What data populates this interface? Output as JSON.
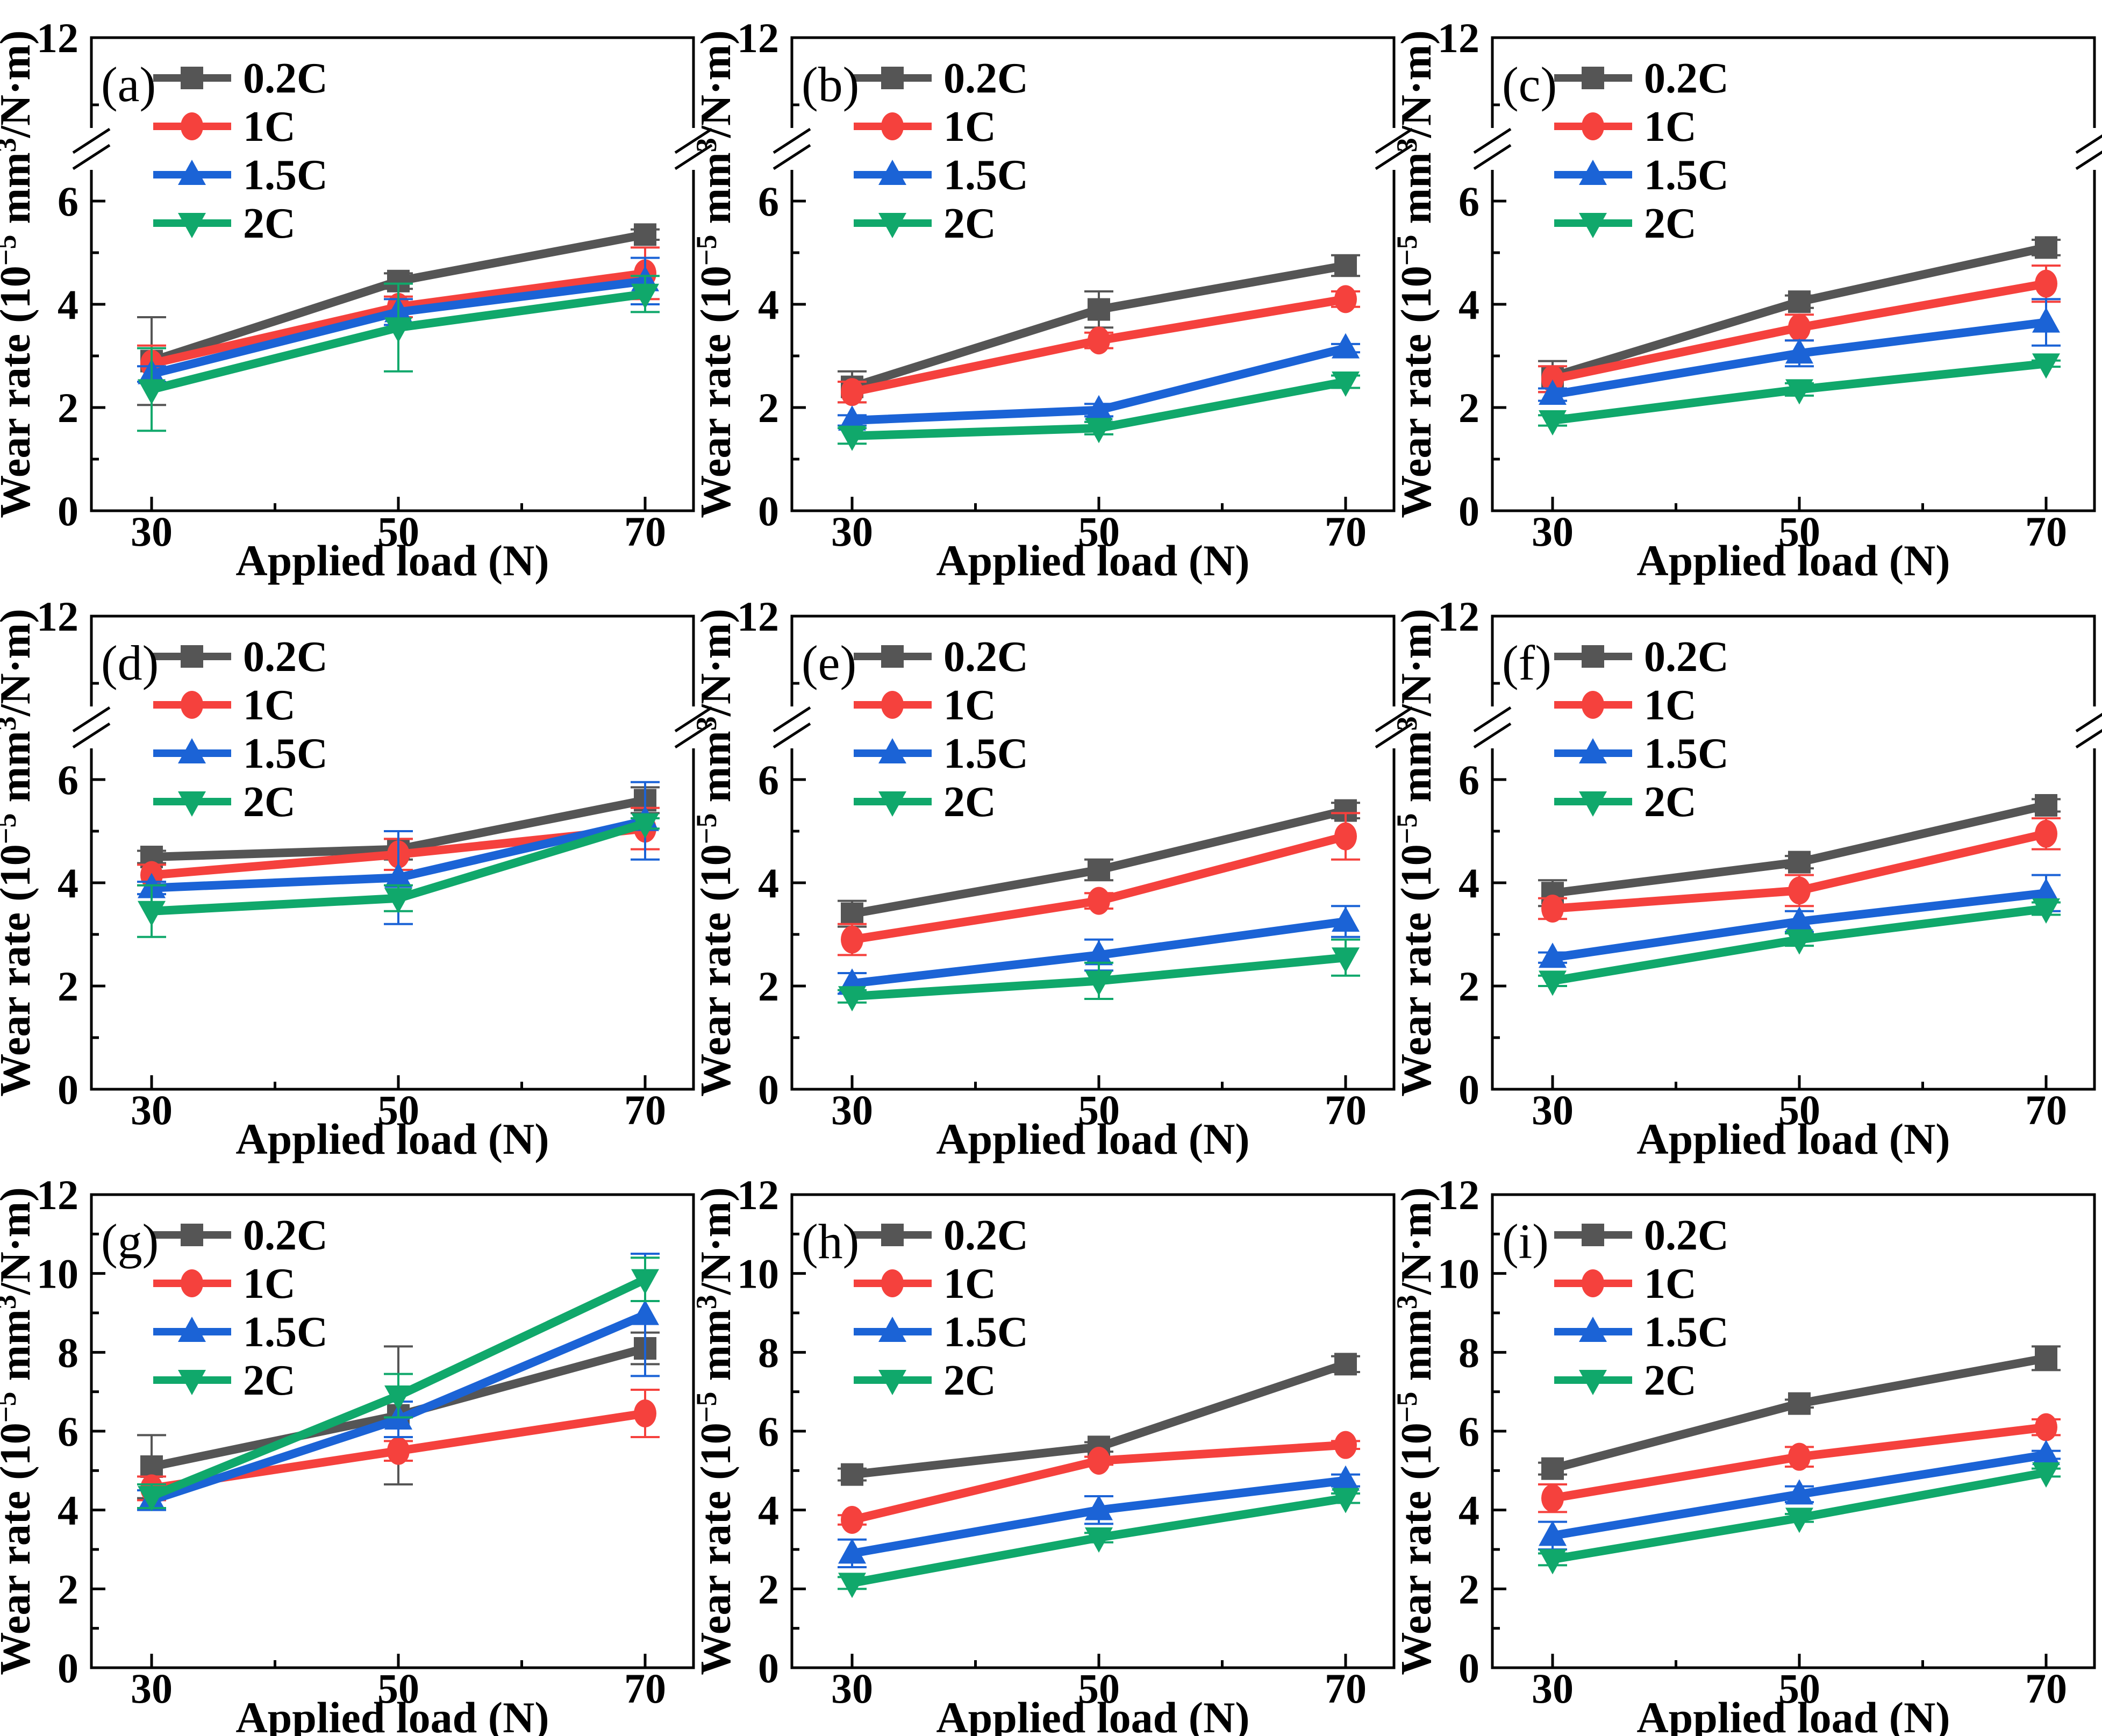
{
  "figure": {
    "x_axis_title": "Applied load (N)",
    "y_axis_title_parts": [
      {
        "t": "Wear rate (10"
      },
      {
        "t": "−5",
        "sup": true
      },
      {
        "t": " mm"
      },
      {
        "t": "3",
        "sup": true
      },
      {
        "t": "/N·m)"
      }
    ],
    "axes": {
      "x_ticks": [
        {
          "v": 30,
          "label": "30"
        },
        {
          "v": 50,
          "label": "50"
        },
        {
          "v": 70,
          "label": "70"
        }
      ],
      "x_minor": [
        40,
        60
      ],
      "y_broken": {
        "major": [
          {
            "v": 0,
            "label": "0"
          },
          {
            "v": 2,
            "label": "2"
          },
          {
            "v": 4,
            "label": "4"
          },
          {
            "v": 6,
            "label": "6"
          }
        ],
        "minor_values": [
          1,
          3,
          5
        ],
        "top_label": "12"
      },
      "y_linear": {
        "major": [
          {
            "v": 0,
            "label": "0"
          },
          {
            "v": 2,
            "label": "2"
          },
          {
            "v": 4,
            "label": "4"
          },
          {
            "v": 6,
            "label": "6"
          },
          {
            "v": 8,
            "label": "8"
          },
          {
            "v": 10,
            "label": "10"
          },
          {
            "v": 12,
            "label": "12"
          }
        ],
        "minor_values": [
          1,
          3,
          5,
          7,
          9,
          11
        ]
      }
    },
    "legend": {
      "items": [
        {
          "label": "0.2C",
          "color": "#555555",
          "marker": "square"
        },
        {
          "label": "1C",
          "color": "#f5413d",
          "marker": "circle"
        },
        {
          "label": "1.5C",
          "color": "#1b63d6",
          "marker": "triangle-up"
        },
        {
          "label": "2C",
          "color": "#10a86b",
          "marker": "triangle-down"
        }
      ]
    },
    "colors": {
      "series_02c": "#555555",
      "series_1c": "#f5413d",
      "series_15c": "#1b63d6",
      "series_2c": "#10a86b",
      "axis": "#000000",
      "background": "#ffffff"
    }
  },
  "chart_data": [
    {
      "panel": "a",
      "type": "line",
      "broken_y_axis": true,
      "title": "",
      "xlabel": "Applied load (N)",
      "ylabel": "Wear rate (10-5 mm3/N·m)",
      "x": [
        30,
        50,
        70
      ],
      "ylim": [
        0,
        12
      ],
      "series": [
        {
          "name": "0.2C",
          "values": [
            2.9,
            4.45,
            5.35
          ],
          "errors": [
            0.85,
            0.15,
            0.1
          ]
        },
        {
          "name": "1C",
          "values": [
            2.85,
            3.95,
            4.6
          ],
          "errors": [
            0.35,
            0.2,
            0.5
          ]
        },
        {
          "name": "1.5C",
          "values": [
            2.65,
            3.85,
            4.45
          ],
          "errors": [
            0.15,
            0.25,
            0.45
          ]
        },
        {
          "name": "2C",
          "values": [
            2.35,
            3.55,
            4.2
          ],
          "errors": [
            0.8,
            0.85,
            0.35
          ]
        }
      ]
    },
    {
      "panel": "b",
      "type": "line",
      "broken_y_axis": true,
      "title": "",
      "xlabel": "Applied load (N)",
      "ylabel": "Wear rate (10-5 mm3/N·m)",
      "x": [
        30,
        50,
        70
      ],
      "ylim": [
        0,
        12
      ],
      "series": [
        {
          "name": "0.2C",
          "values": [
            2.4,
            3.9,
            4.75
          ],
          "errors": [
            0.3,
            0.35,
            0.2
          ]
        },
        {
          "name": "1C",
          "values": [
            2.3,
            3.3,
            4.1
          ],
          "errors": [
            0.2,
            0.15,
            0.15
          ]
        },
        {
          "name": "1.5C",
          "values": [
            1.75,
            1.95,
            3.15
          ],
          "errors": [
            0.1,
            0.12,
            0.08
          ]
        },
        {
          "name": "2C",
          "values": [
            1.45,
            1.6,
            2.5
          ],
          "errors": [
            0.15,
            0.12,
            0.12
          ]
        }
      ]
    },
    {
      "panel": "c",
      "type": "line",
      "broken_y_axis": true,
      "title": "",
      "xlabel": "Applied load (N)",
      "ylabel": "Wear rate (10-5 mm3/N·m)",
      "x": [
        30,
        50,
        70
      ],
      "ylim": [
        0,
        12
      ],
      "series": [
        {
          "name": "0.2C",
          "values": [
            2.6,
            4.05,
            5.1
          ],
          "errors": [
            0.3,
            0.12,
            0.15
          ]
        },
        {
          "name": "1C",
          "values": [
            2.55,
            3.55,
            4.4
          ],
          "errors": [
            0.25,
            0.25,
            0.35
          ]
        },
        {
          "name": "1.5C",
          "values": [
            2.25,
            3.05,
            3.65
          ],
          "errors": [
            0.12,
            0.25,
            0.45
          ]
        },
        {
          "name": "2C",
          "values": [
            1.75,
            2.35,
            2.85
          ],
          "errors": [
            0.1,
            0.12,
            0.06
          ]
        }
      ]
    },
    {
      "panel": "d",
      "type": "line",
      "broken_y_axis": true,
      "title": "",
      "xlabel": "Applied load (N)",
      "ylabel": "Wear rate (10-5 mm3/N·m)",
      "x": [
        30,
        50,
        70
      ],
      "ylim": [
        0,
        12
      ],
      "series": [
        {
          "name": "0.2C",
          "values": [
            4.5,
            4.65,
            5.6
          ],
          "errors": [
            0.12,
            0.2,
            0.25
          ]
        },
        {
          "name": "1C",
          "values": [
            4.15,
            4.55,
            5.05
          ],
          "errors": [
            0.2,
            0.3,
            0.4
          ]
        },
        {
          "name": "1.5C",
          "values": [
            3.9,
            4.1,
            5.2
          ],
          "errors": [
            0.12,
            0.9,
            0.75
          ]
        },
        {
          "name": "2C",
          "values": [
            3.45,
            3.7,
            5.15
          ],
          "errors": [
            0.5,
            0.25,
            0.1
          ]
        }
      ]
    },
    {
      "panel": "e",
      "type": "line",
      "broken_y_axis": true,
      "title": "",
      "xlabel": "Applied load (N)",
      "ylabel": "Wear rate (10-5 mm3/N·m)",
      "x": [
        30,
        50,
        70
      ],
      "ylim": [
        0,
        12
      ],
      "series": [
        {
          "name": "0.2C",
          "values": [
            3.4,
            4.25,
            5.4
          ],
          "errors": [
            0.25,
            0.2,
            0.15
          ]
        },
        {
          "name": "1C",
          "values": [
            2.9,
            3.65,
            4.9
          ],
          "errors": [
            0.3,
            0.15,
            0.45
          ]
        },
        {
          "name": "1.5C",
          "values": [
            2.05,
            2.6,
            3.25
          ],
          "errors": [
            0.2,
            0.3,
            0.3
          ]
        },
        {
          "name": "2C",
          "values": [
            1.8,
            2.1,
            2.55
          ],
          "errors": [
            0.12,
            0.35,
            0.35
          ]
        }
      ]
    },
    {
      "panel": "f",
      "type": "line",
      "broken_y_axis": true,
      "title": "",
      "xlabel": "Applied load (N)",
      "ylabel": "Wear rate (10-5 mm3/N·m)",
      "x": [
        30,
        50,
        70
      ],
      "ylim": [
        0,
        12
      ],
      "series": [
        {
          "name": "0.2C",
          "values": [
            3.8,
            4.4,
            5.5
          ],
          "errors": [
            0.25,
            0.12,
            0.12
          ]
        },
        {
          "name": "1C",
          "values": [
            3.5,
            3.85,
            4.95
          ],
          "errors": [
            0.2,
            0.3,
            0.3
          ]
        },
        {
          "name": "1.5C",
          "values": [
            2.55,
            3.25,
            3.8
          ],
          "errors": [
            0.1,
            0.2,
            0.35
          ]
        },
        {
          "name": "2C",
          "values": [
            2.1,
            2.9,
            3.5
          ],
          "errors": [
            0.1,
            0.12,
            0.12
          ]
        }
      ]
    },
    {
      "panel": "g",
      "type": "line",
      "broken_y_axis": false,
      "title": "",
      "xlabel": "Applied load (N)",
      "ylabel": "Wear rate (10-5 mm3/N·m)",
      "x": [
        30,
        50,
        70
      ],
      "ylim": [
        0,
        12
      ],
      "series": [
        {
          "name": "0.2C",
          "values": [
            5.1,
            6.4,
            8.1
          ],
          "errors": [
            0.8,
            1.75,
            0.4
          ]
        },
        {
          "name": "1C",
          "values": [
            4.55,
            5.5,
            6.45
          ],
          "errors": [
            0.3,
            0.25,
            0.6
          ]
        },
        {
          "name": "1.5C",
          "values": [
            4.25,
            6.3,
            8.95
          ],
          "errors": [
            0.25,
            0.45,
            1.55
          ]
        },
        {
          "name": "2C",
          "values": [
            4.35,
            6.9,
            9.85
          ],
          "errors": [
            0.3,
            0.55,
            0.55
          ]
        }
      ]
    },
    {
      "panel": "h",
      "type": "line",
      "broken_y_axis": false,
      "title": "",
      "xlabel": "Applied load (N)",
      "ylabel": "Wear rate (10-5 mm3/N·m)",
      "x": [
        30,
        50,
        70
      ],
      "ylim": [
        0,
        12
      ],
      "series": [
        {
          "name": "0.2C",
          "values": [
            4.9,
            5.6,
            7.7
          ],
          "errors": [
            0.15,
            0.12,
            0.2
          ]
        },
        {
          "name": "1C",
          "values": [
            3.75,
            5.25,
            5.65
          ],
          "errors": [
            0.12,
            0.1,
            0.1
          ]
        },
        {
          "name": "1.5C",
          "values": [
            2.9,
            4.0,
            4.75
          ],
          "errors": [
            0.35,
            0.35,
            0.15
          ]
        },
        {
          "name": "2C",
          "values": [
            2.15,
            3.3,
            4.3
          ],
          "errors": [
            0.15,
            0.12,
            0.12
          ]
        }
      ]
    },
    {
      "panel": "i",
      "type": "line",
      "broken_y_axis": false,
      "title": "",
      "xlabel": "Applied load (N)",
      "ylabel": "Wear rate (10-5 mm3/N·m)",
      "x": [
        30,
        50,
        70
      ],
      "ylim": [
        0,
        12
      ],
      "series": [
        {
          "name": "0.2C",
          "values": [
            5.05,
            6.7,
            7.85
          ],
          "errors": [
            0.15,
            0.1,
            0.3
          ]
        },
        {
          "name": "1C",
          "values": [
            4.3,
            5.35,
            6.1
          ],
          "errors": [
            0.35,
            0.25,
            0.2
          ]
        },
        {
          "name": "1.5C",
          "values": [
            3.35,
            4.4,
            5.4
          ],
          "errors": [
            0.35,
            0.2,
            0.1
          ]
        },
        {
          "name": "2C",
          "values": [
            2.75,
            3.8,
            4.95
          ],
          "errors": [
            0.15,
            0.1,
            0.1
          ]
        }
      ]
    }
  ]
}
